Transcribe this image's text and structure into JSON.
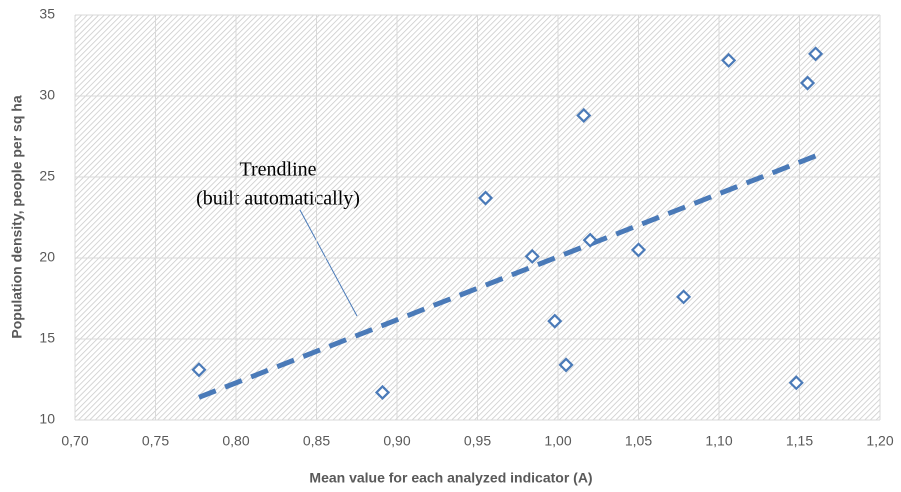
{
  "chart_data": {
    "type": "scatter",
    "x_label": "Mean value for each analyzed indicator (A)",
    "y_label": "Population density, people per sq ha",
    "series": [
      {
        "color": "#4a7ab8",
        "x": [
          0.777,
          0.891,
          0.955,
          0.984,
          0.998,
          1.005,
          1.016,
          1.02,
          1.05,
          1.078,
          1.106,
          1.148,
          1.155,
          1.16
        ],
        "values": [
          13.1,
          11.7,
          23.7,
          20.1,
          16.1,
          13.4,
          28.8,
          21.1,
          20.5,
          17.6,
          32.2,
          12.3,
          30.8,
          32.6
        ]
      }
    ],
    "trendline": {
      "x": [
        0.777,
        1.16
      ],
      "y": [
        11.4,
        26.3
      ],
      "color": "#4a7ab8"
    },
    "annotation": [
      "Trendline",
      "(built automatically)"
    ],
    "xlim": [
      0.7,
      1.2
    ],
    "xticks": [
      {
        "value": 0.7,
        "label": "0,70"
      },
      {
        "value": 0.75,
        "label": "0,75"
      },
      {
        "value": 0.8,
        "label": "0,80"
      },
      {
        "value": 0.85,
        "label": "0,85"
      },
      {
        "value": 0.9,
        "label": "0,90"
      },
      {
        "value": 0.95,
        "label": "0,95"
      },
      {
        "value": 1.0,
        "label": "1,00"
      },
      {
        "value": 1.05,
        "label": "1,05"
      },
      {
        "value": 1.1,
        "label": "1,10"
      },
      {
        "value": 1.15,
        "label": "1,15"
      },
      {
        "value": 1.2,
        "label": "1,20"
      }
    ],
    "ylim": [
      10,
      35
    ],
    "yticks": [
      10,
      15,
      20,
      25,
      30,
      35
    ],
    "grid": true
  }
}
